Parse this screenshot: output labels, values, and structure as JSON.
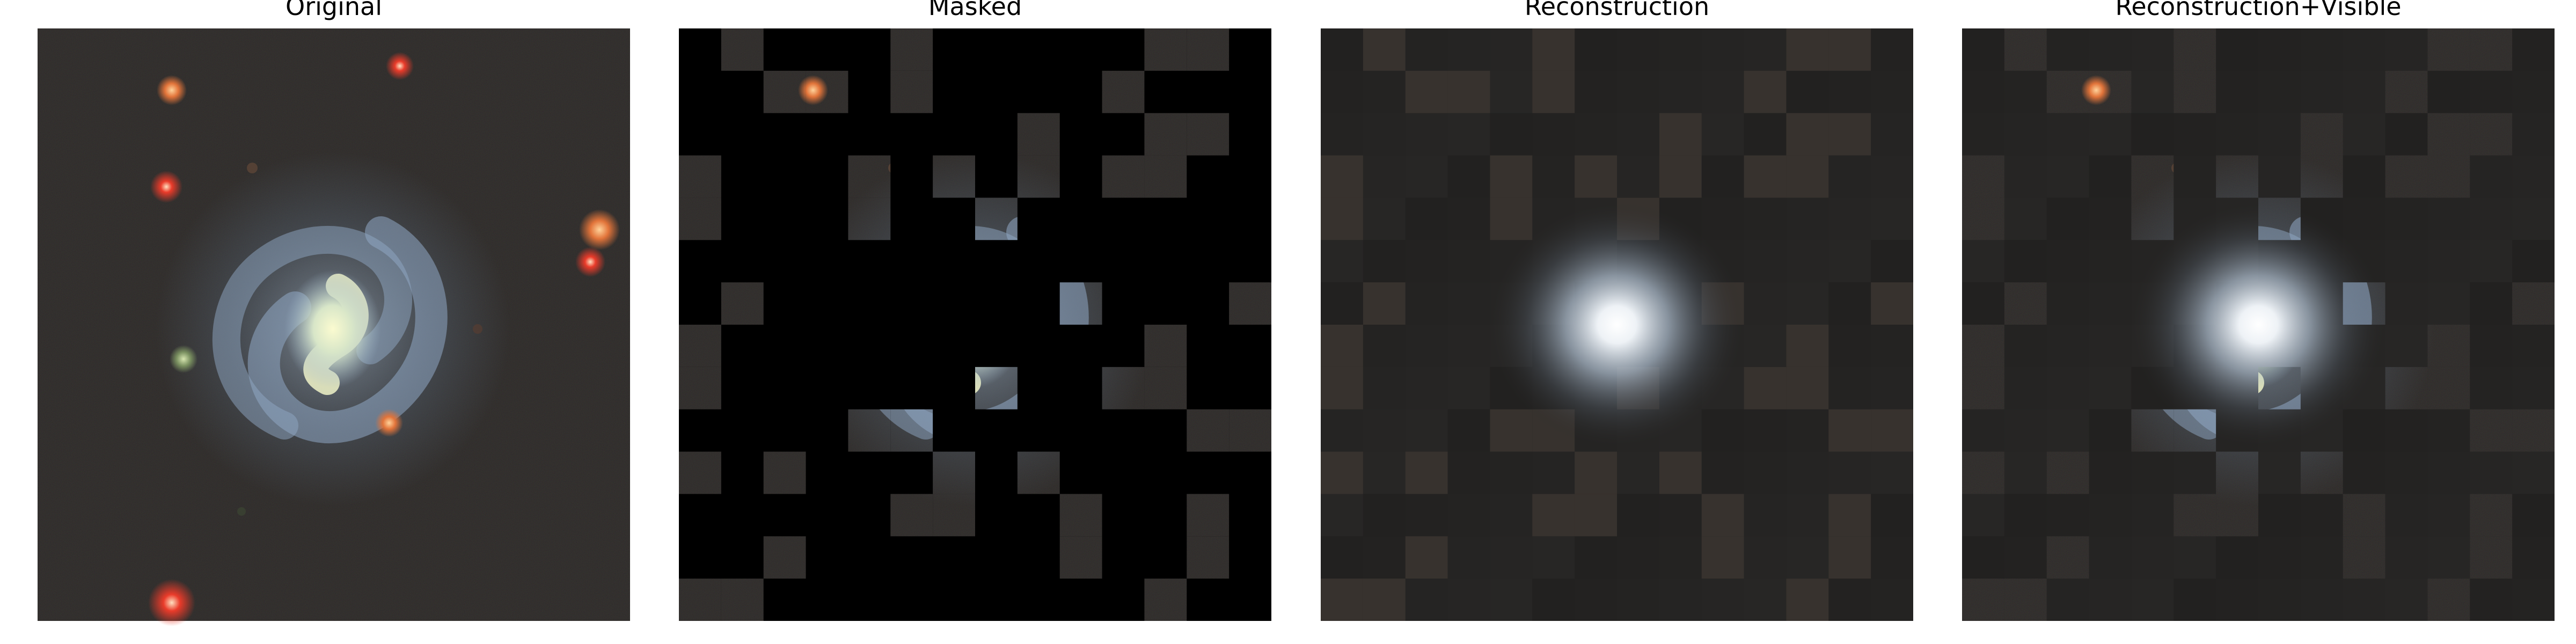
{
  "panels": [
    {
      "id": "original",
      "title": "Original"
    },
    {
      "id": "masked",
      "title": "Masked"
    },
    {
      "id": "reconstruction",
      "title": "Reconstruction"
    },
    {
      "id": "reconstruction_visible",
      "title": "Reconstruction+Visible"
    }
  ],
  "grid": {
    "cols": 14,
    "rows": 14
  },
  "visible_patches": [
    [
      1,
      0
    ],
    [
      5,
      0
    ],
    [
      11,
      0
    ],
    [
      12,
      0
    ],
    [
      2,
      1
    ],
    [
      3,
      1
    ],
    [
      5,
      1
    ],
    [
      10,
      1
    ],
    [
      8,
      2
    ],
    [
      11,
      2
    ],
    [
      12,
      2
    ],
    [
      0,
      3
    ],
    [
      4,
      3
    ],
    [
      6,
      3
    ],
    [
      8,
      3
    ],
    [
      10,
      3
    ],
    [
      11,
      3
    ],
    [
      0,
      4
    ],
    [
      4,
      4
    ],
    [
      7,
      4
    ],
    [
      1,
      6
    ],
    [
      9,
      6
    ],
    [
      13,
      6
    ],
    [
      0,
      7
    ],
    [
      11,
      7
    ],
    [
      0,
      8
    ],
    [
      7,
      8
    ],
    [
      10,
      8
    ],
    [
      11,
      8
    ],
    [
      4,
      9
    ],
    [
      5,
      9
    ],
    [
      12,
      9
    ],
    [
      13,
      9
    ],
    [
      0,
      10
    ],
    [
      2,
      10
    ],
    [
      6,
      10
    ],
    [
      8,
      10
    ],
    [
      5,
      11
    ],
    [
      6,
      11
    ],
    [
      9,
      11
    ],
    [
      12,
      11
    ],
    [
      2,
      12
    ],
    [
      9,
      12
    ],
    [
      12,
      12
    ],
    [
      0,
      13
    ],
    [
      1,
      13
    ],
    [
      11,
      13
    ]
  ],
  "colors": {
    "sky": "#1d1b1a",
    "mask": "#000000",
    "recon_bg": "#262524",
    "galaxy_core": "#f4f6e2",
    "galaxy_arm": "#8fa8c4"
  }
}
